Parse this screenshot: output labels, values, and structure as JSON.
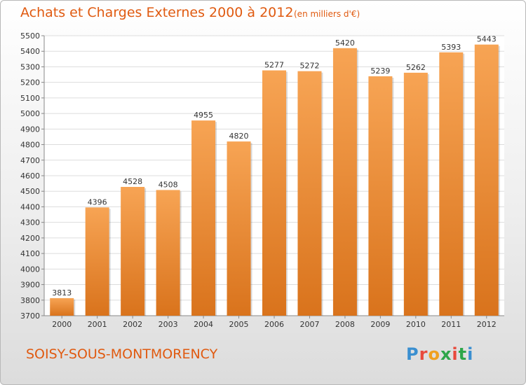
{
  "title": "Achats et Charges Externes 2000 à 2012",
  "subtitle": "(en milliers d'€)",
  "city": "SOISY-SOUS-MONTMORENCY",
  "logo": {
    "text": "Proxiti",
    "colors": [
      "#3a8fd0",
      "#e84a3c",
      "#f0a020",
      "#2ea64a",
      "#e84a3c",
      "#2ea64a",
      "#3a8fd0"
    ]
  },
  "colors": {
    "bar_top": "#f7a454",
    "bar_bottom": "#d9731c",
    "accent": "#e05a10",
    "grid": "#dddddd"
  },
  "chart_data": {
    "type": "bar",
    "categories": [
      "2000",
      "2001",
      "2002",
      "2003",
      "2004",
      "2005",
      "2006",
      "2007",
      "2008",
      "2009",
      "2010",
      "2011",
      "2012"
    ],
    "values": [
      3813,
      4396,
      4528,
      4508,
      4955,
      4820,
      5277,
      5272,
      5420,
      5239,
      5262,
      5393,
      5443
    ],
    "title": "Achats et Charges Externes 2000 à 2012",
    "subtitle": "(en milliers d'€)",
    "ylim": [
      3700,
      5500
    ],
    "yticks": [
      3700,
      3800,
      3900,
      4000,
      4100,
      4200,
      4300,
      4400,
      4500,
      4600,
      4700,
      4800,
      4900,
      5000,
      5100,
      5200,
      5300,
      5400,
      5500
    ],
    "grid": true,
    "data_labels": true
  }
}
